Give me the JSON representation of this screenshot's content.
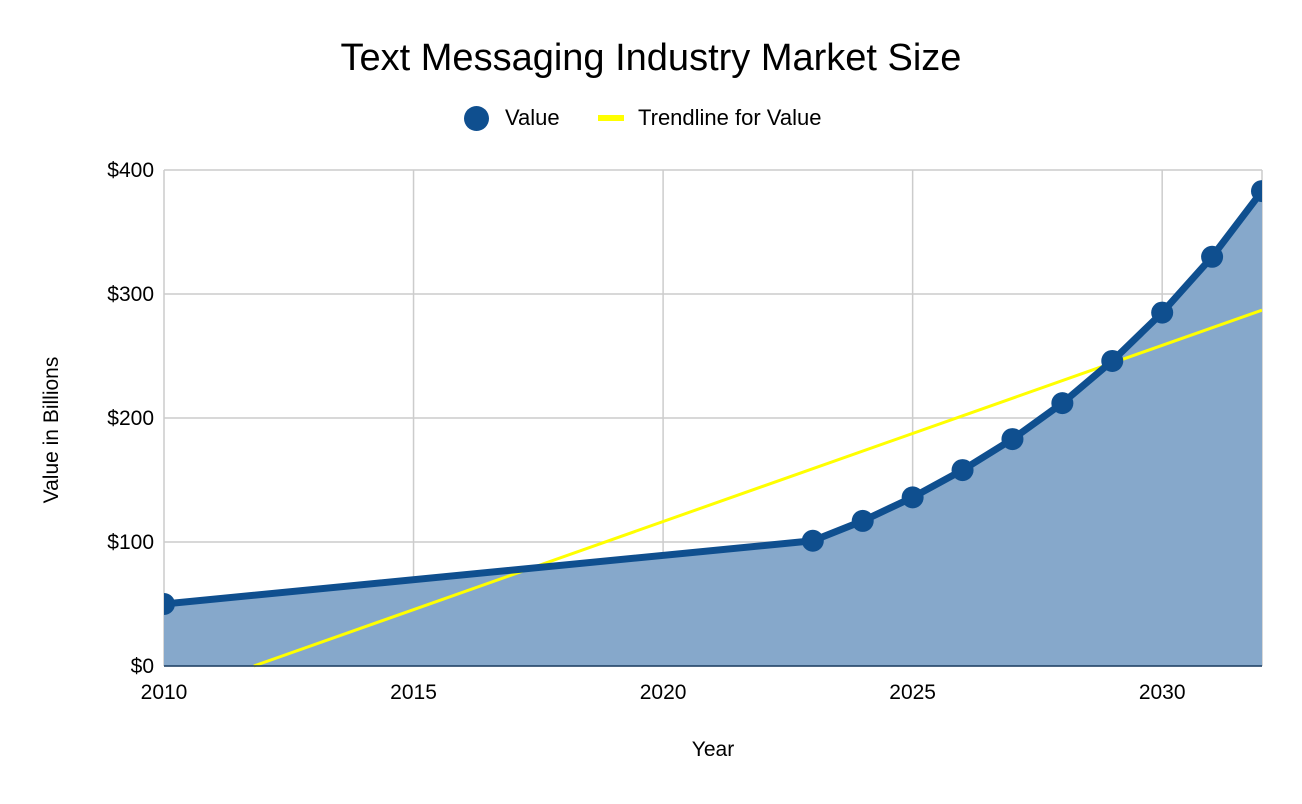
{
  "chart_data": {
    "type": "area",
    "title": "Text Messaging Industry Market Size",
    "xlabel": "Year",
    "ylabel": "Value in Billions",
    "xlim": [
      2010,
      2032
    ],
    "ylim": [
      0,
      400
    ],
    "x_ticks": [
      2010,
      2015,
      2020,
      2025,
      2030
    ],
    "x_tick_labels": [
      "2010",
      "2015",
      "2020",
      "2025",
      "2030"
    ],
    "y_ticks": [
      0,
      100,
      200,
      300,
      400
    ],
    "y_tick_labels": [
      "$0",
      "$100",
      "$200",
      "$300",
      "$400"
    ],
    "grid": true,
    "legend_position": "top",
    "series": [
      {
        "name": "Value",
        "color": "#0f4f8f",
        "fill": "#86a8cb",
        "x": [
          2010,
          2023,
          2024,
          2025,
          2026,
          2027,
          2028,
          2029,
          2030,
          2031,
          2032
        ],
        "values": [
          50,
          101,
          117,
          136,
          158,
          183,
          212,
          246,
          285,
          330,
          383
        ]
      },
      {
        "name": "Trendline for Value",
        "type": "trendline",
        "color": "#ffff00",
        "x": [
          2011.8,
          2032
        ],
        "values": [
          0,
          287
        ]
      }
    ]
  }
}
